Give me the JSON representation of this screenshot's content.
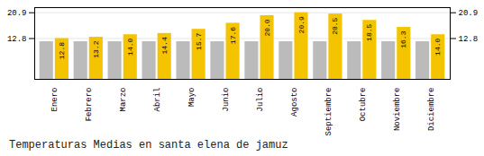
{
  "chart_data": {
    "type": "bar",
    "title": "Temperaturas Medias en santa elena de jamuz",
    "categories": [
      "Enero",
      "Febrero",
      "Marzo",
      "Abril",
      "Mayo",
      "Junio",
      "Julio",
      "Agosto",
      "Septiembre",
      "Octubre",
      "Noviembre",
      "Diciembre"
    ],
    "series": [
      {
        "color": "#BBBBBB",
        "values": [
          11.8,
          11.8,
          11.8,
          11.8,
          11.8,
          11.8,
          11.8,
          11.8,
          11.8,
          11.8,
          11.8,
          11.8
        ]
      },
      {
        "color": "#F5C400",
        "values": [
          12.8,
          13.2,
          14.0,
          14.4,
          15.7,
          17.6,
          20.0,
          20.9,
          20.5,
          18.5,
          16.3,
          14.0
        ],
        "value_labels": [
          "12.8",
          "13.2",
          "14.0",
          "14.4",
          "15.7",
          "17.6",
          "20.0",
          "20.9",
          "20.5",
          "18.5",
          "16.3",
          "14.0"
        ],
        "data_labels": true
      }
    ],
    "ylim": [
      0,
      22.5
    ],
    "yticks": [
      12.8,
      20.9
    ],
    "grid": true
  }
}
